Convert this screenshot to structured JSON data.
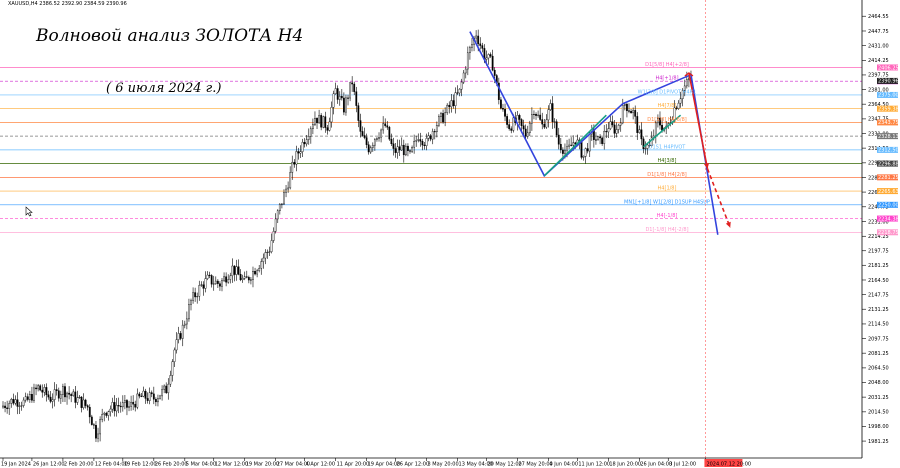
{
  "header": {
    "symbol_line": "XAUUSD,H4  2386.52 2392.90 2384.59 2390.96"
  },
  "title": "Волновой анализ ЗОЛОТА H4",
  "subtitle": "( 6 июля 2024 г.)",
  "colors": {
    "up_candle": "#000000",
    "down_candle": "#000000",
    "wave_blue": "#3344dd",
    "wave_green": "#17a085",
    "wave_red": "#e02020",
    "vline_red": "#ff7070"
  },
  "chart_data": {
    "type": "candlestick",
    "ylim": [
      1962,
      2483
    ],
    "y_ticks": [
      "2464.55",
      "2447.75",
      "2431.00",
      "2414.25",
      "2397.75",
      "2381.00",
      "2364.50",
      "2347.75",
      "2331.00",
      "2314.50",
      "2297.75",
      "2281.00",
      "2264.50",
      "2247.75",
      "2231.00",
      "2214.25",
      "2197.75",
      "2181.25",
      "2164.50",
      "2147.75",
      "2131.25",
      "2114.50",
      "2097.75",
      "2081.25",
      "2064.50",
      "2048.00",
      "2031.25",
      "2014.50",
      "1998.00",
      "1981.25"
    ],
    "x_ticks": [
      {
        "label": "19 Jan 2024",
        "bar": 0
      },
      {
        "label": "26 Jan 12:00",
        "bar": 14
      },
      {
        "label": "2 Feb 20:00",
        "bar": 29
      },
      {
        "label": "12 Feb 04:00",
        "bar": 44
      },
      {
        "label": "19 Feb 12:00",
        "bar": 58
      },
      {
        "label": "26 Feb 20:00",
        "bar": 73
      },
      {
        "label": "5 Mar 04:00",
        "bar": 88
      },
      {
        "label": "12 Mar 12:00",
        "bar": 102
      },
      {
        "label": "19 Mar 20:00",
        "bar": 117
      },
      {
        "label": "27 Mar 04:00",
        "bar": 132
      },
      {
        "label": "4 Apr 12:00",
        "bar": 146
      },
      {
        "label": "11 Apr 20:00",
        "bar": 161
      },
      {
        "label": "19 Apr 04:00",
        "bar": 176
      },
      {
        "label": "26 Apr 12:00",
        "bar": 190
      },
      {
        "label": "3 May 20:00",
        "bar": 205
      },
      {
        "label": "13 May 04:00",
        "bar": 220
      },
      {
        "label": "20 May 12:00",
        "bar": 234
      },
      {
        "label": "27 May 20:00",
        "bar": 249
      },
      {
        "label": "4 Jun 04:00",
        "bar": 264
      },
      {
        "label": "11 Jun 12:00",
        "bar": 278
      },
      {
        "label": "18 Jun 20:00",
        "bar": 293
      },
      {
        "label": "26 Jun 04:00",
        "bar": 308
      },
      {
        "label": "3 Jul 12:00",
        "bar": 322
      },
      {
        "label": "2024.07.12 20:00",
        "bar": 340
      }
    ],
    "waypoints": [
      [
        0,
        2020
      ],
      [
        6,
        2028
      ],
      [
        12,
        2025
      ],
      [
        18,
        2042
      ],
      [
        24,
        2030
      ],
      [
        30,
        2040
      ],
      [
        36,
        2030
      ],
      [
        42,
        2020
      ],
      [
        46,
        1990
      ],
      [
        50,
        2015
      ],
      [
        56,
        2022
      ],
      [
        62,
        2020
      ],
      [
        68,
        2032
      ],
      [
        74,
        2030
      ],
      [
        80,
        2040
      ],
      [
        84,
        2085
      ],
      [
        88,
        2110
      ],
      [
        92,
        2140
      ],
      [
        96,
        2155
      ],
      [
        100,
        2165
      ],
      [
        106,
        2160
      ],
      [
        112,
        2178
      ],
      [
        118,
        2162
      ],
      [
        124,
        2180
      ],
      [
        130,
        2200
      ],
      [
        134,
        2240
      ],
      [
        138,
        2268
      ],
      [
        142,
        2300
      ],
      [
        148,
        2330
      ],
      [
        152,
        2350
      ],
      [
        158,
        2340
      ],
      [
        162,
        2380
      ],
      [
        166,
        2360
      ],
      [
        170,
        2390
      ],
      [
        174,
        2330
      ],
      [
        178,
        2315
      ],
      [
        182,
        2330
      ],
      [
        186,
        2340
      ],
      [
        190,
        2310
      ],
      [
        194,
        2315
      ],
      [
        198,
        2305
      ],
      [
        202,
        2330
      ],
      [
        206,
        2320
      ],
      [
        210,
        2340
      ],
      [
        214,
        2350
      ],
      [
        218,
        2365
      ],
      [
        222,
        2378
      ],
      [
        226,
        2420
      ],
      [
        230,
        2445
      ],
      [
        234,
        2420
      ],
      [
        238,
        2410
      ],
      [
        242,
        2360
      ],
      [
        246,
        2340
      ],
      [
        250,
        2345
      ],
      [
        254,
        2330
      ],
      [
        258,
        2360
      ],
      [
        262,
        2340
      ],
      [
        266,
        2360
      ],
      [
        270,
        2320
      ],
      [
        274,
        2310
      ],
      [
        278,
        2325
      ],
      [
        282,
        2305
      ],
      [
        286,
        2330
      ],
      [
        290,
        2320
      ],
      [
        294,
        2340
      ],
      [
        298,
        2335
      ],
      [
        302,
        2365
      ],
      [
        306,
        2355
      ],
      [
        310,
        2320
      ],
      [
        314,
        2315
      ],
      [
        318,
        2345
      ],
      [
        322,
        2335
      ],
      [
        326,
        2360
      ],
      [
        330,
        2380
      ],
      [
        333,
        2392
      ]
    ],
    "levels": [
      {
        "label": "D1[5/8] H4[+2/8]",
        "price": "2406.25",
        "value": 2406.25,
        "color": "#ff66bb",
        "style": "solid",
        "tagcolor": "#ff66bb"
      },
      {
        "label": "H4[+1/8]",
        "price": "2390.63",
        "value": 2390.63,
        "color": "#cc22cc",
        "style": "dashed",
        "tagcolor": "#cc22cc"
      },
      {
        "label": "W1[3/8] D1PIVOT H4R1",
        "price": "2375.00",
        "value": 2375.0,
        "color": "#66bbff",
        "style": "solid",
        "tagcolor": "#66bbff"
      },
      {
        "label": "H4[7/8]",
        "price": "2359.38",
        "value": 2359.38,
        "color": "#ffaa33",
        "style": "solid",
        "tagcolor": "#ffaa33"
      },
      {
        "label": "D1[3/8] H4[6/8]",
        "price": "2343.75",
        "value": 2343.75,
        "color": "#ff8844",
        "style": "solid",
        "tagcolor": "#ff8844"
      },
      {
        "label": "",
        "price": "2328.13",
        "value": 2328.13,
        "color": "#777777",
        "style": "dashed",
        "tagcolor": "#777777"
      },
      {
        "label": "D1S1 H4PIVOT",
        "price": "2312.50",
        "value": 2312.5,
        "color": "#66bbff",
        "style": "solid",
        "tagcolor": "#66bbff"
      },
      {
        "label": "H4[3/8]",
        "price": "2296.88",
        "value": 2296.88,
        "color": "#336600",
        "style": "solid",
        "tagcolor": "#444444"
      },
      {
        "label": "D1[1/8] H4[2/8]",
        "price": "2281.25",
        "value": 2281.25,
        "color": "#ff7744",
        "style": "solid",
        "tagcolor": "#ff7744"
      },
      {
        "label": "H4[1/8]",
        "price": "2265.63",
        "value": 2265.63,
        "color": "#ffaa33",
        "style": "solid",
        "tagcolor": "#ffaa33"
      },
      {
        "label": "MN1[+1/8] W1[2/8] D1SUP H4SUP",
        "price": "2250.00",
        "value": 2250.0,
        "color": "#3399ff",
        "style": "solid",
        "tagcolor": "#3399ff"
      },
      {
        "label": "H4[-1/8]",
        "price": "2234.38",
        "value": 2234.38,
        "color": "#ff44cc",
        "style": "dashed",
        "tagcolor": "#ff44cc"
      },
      {
        "label": "D1[-1/8] H4[-2/8]",
        "price": "2218.75",
        "value": 2218.75,
        "color": "#ff99cc",
        "style": "solid",
        "tagcolor": "#ff99cc"
      }
    ],
    "current_price": {
      "value": 2390.96,
      "label": "2390.96"
    },
    "waves": {
      "blue": [
        [
          226,
          2447
        ],
        [
          262,
          2283
        ],
        [
          300,
          2365
        ],
        [
          333,
          2398
        ],
        [
          346,
          2216
        ]
      ],
      "green": [
        [
          262,
          2283
        ],
        [
          292,
          2352
        ]
      ],
      "green2": [
        [
          310,
          2316
        ],
        [
          328,
          2352
        ]
      ],
      "red_solid": [
        [
          332,
          2400
        ],
        [
          341,
          2291
        ]
      ],
      "red_dashed": [
        [
          341,
          2291
        ],
        [
          352,
          2224
        ]
      ]
    },
    "vline_bar": 340
  }
}
